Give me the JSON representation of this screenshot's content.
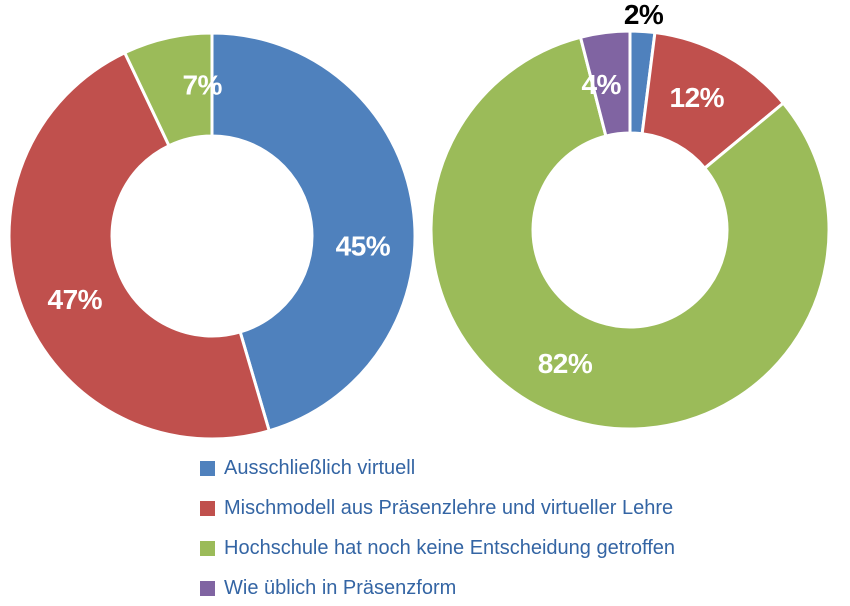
{
  "chart_data": [
    {
      "type": "pie",
      "subtype": "donut",
      "name": "left-donut",
      "title": "",
      "unit": "%",
      "start_angle_deg": 0,
      "direction": "clockwise",
      "slices": [
        {
          "category": "Ausschließlich virtuell",
          "value": 45,
          "display_label": "45%",
          "color": "#4F81BD",
          "label_placement": "inside",
          "label_color": "#FFFFFF"
        },
        {
          "category": "Mischmodell aus Präsenzlehre und virtueller Lehre",
          "value": 47,
          "display_label": "47%",
          "color": "#C0504D",
          "label_placement": "inside",
          "label_color": "#FFFFFF"
        },
        {
          "category": "Hochschule hat noch keine Entscheidung getroffen",
          "value": 7,
          "display_label": "7%",
          "color": "#9BBB59",
          "label_placement": "inside",
          "label_color": "#FFFFFF"
        }
      ]
    },
    {
      "type": "pie",
      "subtype": "donut",
      "name": "right-donut",
      "title": "",
      "unit": "%",
      "start_angle_deg": 0,
      "direction": "clockwise",
      "slices": [
        {
          "category": "Ausschließlich virtuell",
          "value": 2,
          "display_label": "2%",
          "color": "#4F81BD",
          "label_placement": "outside",
          "label_color": "#000000"
        },
        {
          "category": "Mischmodell aus Präsenzlehre und virtueller Lehre",
          "value": 12,
          "display_label": "12%",
          "color": "#C0504D",
          "label_placement": "inside",
          "label_color": "#FFFFFF"
        },
        {
          "category": "Hochschule hat noch keine Entscheidung getroffen",
          "value": 82,
          "display_label": "82%",
          "color": "#9BBB59",
          "label_placement": "inside",
          "label_color": "#FFFFFF"
        },
        {
          "category": "Wie üblich in Präsenzform",
          "value": 4,
          "display_label": "4%",
          "color": "#8064A2",
          "label_placement": "inside",
          "label_color": "#FFFFFF"
        }
      ]
    }
  ],
  "legend": {
    "text_color": "#3465A4",
    "position": "bottom",
    "items": [
      {
        "label": "Ausschließlich virtuell",
        "color": "#4F81BD"
      },
      {
        "label": "Mischmodell aus Präsenzlehre und virtueller Lehre",
        "color": "#C0504D"
      },
      {
        "label": "Hochschule hat noch keine Entscheidung getroffen",
        "color": "#9BBB59"
      },
      {
        "label": "Wie üblich in Präsenzform",
        "color": "#8064A2"
      }
    ]
  }
}
